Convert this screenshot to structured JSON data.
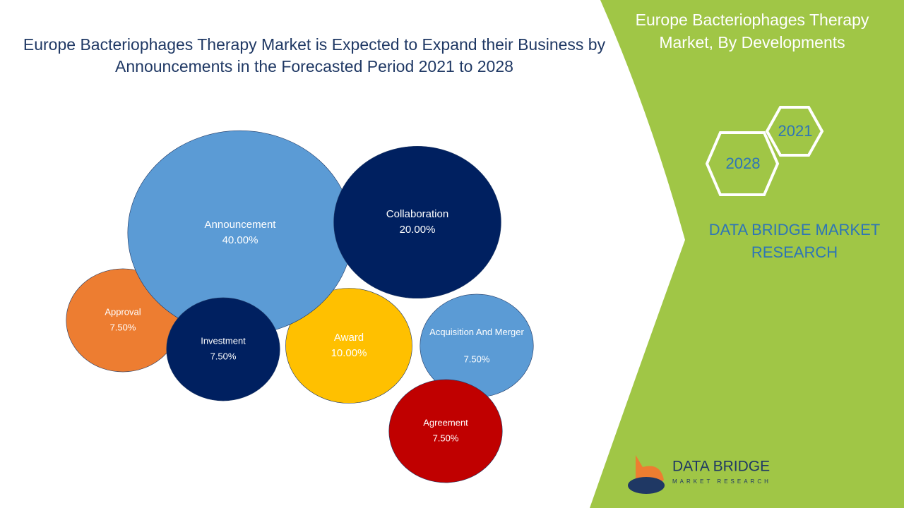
{
  "chart_data": {
    "type": "bubble",
    "title": "Europe Bacteriophages Therapy Market is Expected to Expand their Business by Announcements in the Forecasted Period 2021 to 2028",
    "categories": [
      "Announcement",
      "Collaboration",
      "Approval",
      "Investment",
      "Award",
      "Acquisition And Merger",
      "Agreement"
    ],
    "values": [
      40,
      20,
      7.5,
      7.5,
      10,
      7.5,
      7.5
    ],
    "value_labels": [
      "40.00%",
      "20.00%",
      "7.50%",
      "7.50%",
      "10.00%",
      "7.50%",
      "7.50%"
    ],
    "colors": [
      "#5b9bd5",
      "#002060",
      "#ed7d31",
      "#002060",
      "#ffc000",
      "#5b9bd5",
      "#c00000"
    ]
  },
  "sidebar": {
    "title": "Europe Bacteriophages Therapy Market, By Developments",
    "years": [
      "2021",
      "2028"
    ],
    "brand": "DATA BRIDGE MARKET RESEARCH",
    "logo_name": "DATA BRIDGE",
    "logo_tagline": "MARKET RESEARCH"
  }
}
